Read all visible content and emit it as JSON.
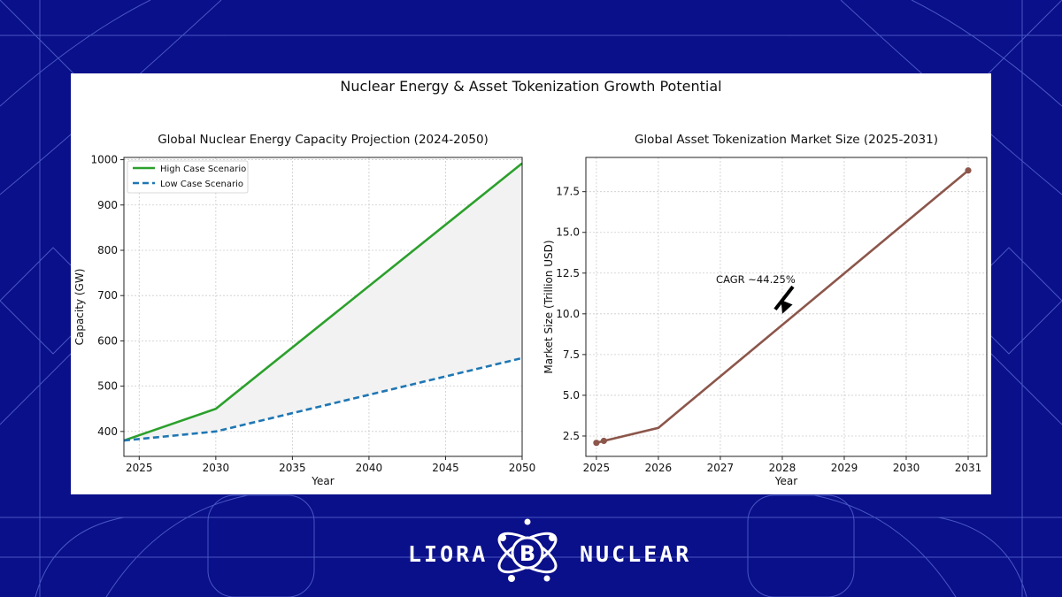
{
  "figure_title": "Nuclear Energy & Asset Tokenization Growth Potential",
  "brand": {
    "left_word": "LIORA",
    "right_word": "NUCLEAR",
    "logo_letter": "B",
    "logo_icon": "atom-icon"
  },
  "colors": {
    "background": "#0a0f8a",
    "high_case": "#2ca02c",
    "low_case": "#1f77b4",
    "market": "#8c564b",
    "fill": "#f2f2f2"
  },
  "chart_data": [
    {
      "type": "line",
      "title": "Global Nuclear Energy Capacity Projection (2024-2050)",
      "xlabel": "Year",
      "ylabel": "Capacity (GW)",
      "xlim": [
        2024,
        2050
      ],
      "ylim": [
        345,
        1005
      ],
      "xticks": [
        2025,
        2030,
        2035,
        2040,
        2045,
        2050
      ],
      "yticks": [
        400,
        500,
        600,
        700,
        800,
        900,
        1000
      ],
      "grid": true,
      "legend": "top-left",
      "fill_between": true,
      "series": [
        {
          "name": "High Case Scenario",
          "style": "solid",
          "x": [
            2024,
            2030,
            2050
          ],
          "y": [
            380,
            450,
            992
          ]
        },
        {
          "name": "Low Case Scenario",
          "style": "dashed",
          "x": [
            2024,
            2030,
            2050
          ],
          "y": [
            380,
            400,
            562
          ]
        }
      ]
    },
    {
      "type": "line",
      "title": "Global Asset Tokenization Market Size (2025-2031)",
      "xlabel": "Year",
      "ylabel": "Market Size (Trillion USD)",
      "xlim": [
        2024.83,
        2031.3
      ],
      "ylim": [
        1.25,
        19.6
      ],
      "xticks": [
        2025,
        2026,
        2027,
        2028,
        2029,
        2030,
        2031
      ],
      "yticks": [
        2.5,
        5.0,
        7.5,
        10.0,
        12.5,
        15.0,
        17.5
      ],
      "grid": true,
      "series": [
        {
          "x": [
            2025,
            2025.12,
            2026,
            2031
          ],
          "y": [
            2.08,
            2.2,
            3.0,
            18.8
          ],
          "markers": [
            true,
            true,
            false,
            true
          ]
        }
      ],
      "annotation": {
        "text": "CAGR ~44.25%",
        "x": 2027.0,
        "y": 12.1,
        "arrow_to": [
          2028.0,
          10.0
        ]
      }
    }
  ]
}
